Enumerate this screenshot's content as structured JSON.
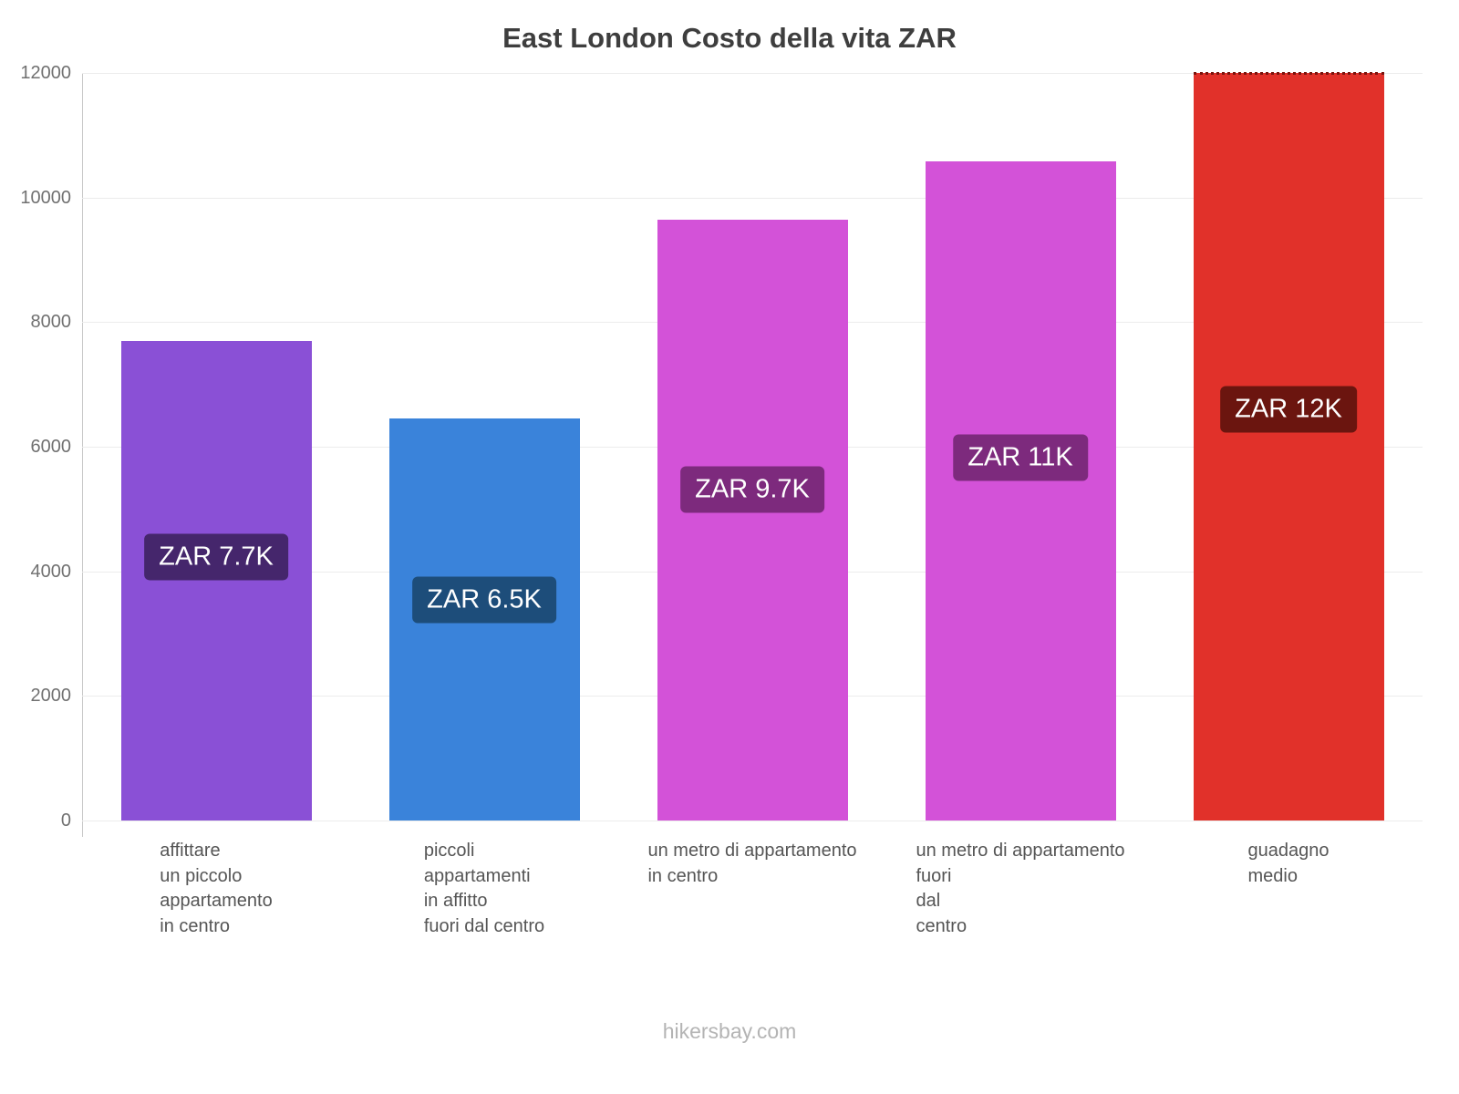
{
  "title": "East London Costo della vita ZAR",
  "footer": "hikersbay.com",
  "chart_data": {
    "type": "bar",
    "title": "East London Costo della vita ZAR",
    "categories": [
      [
        "affittare",
        "un piccolo",
        "appartamento",
        "in centro"
      ],
      [
        "piccoli",
        "appartamenti",
        "in affitto",
        "fuori dal centro"
      ],
      [
        "un metro di appartamento",
        "in centro"
      ],
      [
        "un metro di appartamento",
        "fuori",
        "dal",
        "centro"
      ],
      [
        "guadagno",
        "medio"
      ]
    ],
    "values": [
      7700,
      6450,
      9650,
      10580,
      12000
    ],
    "value_labels": [
      "ZAR 7.7K",
      "ZAR 6.5K",
      "ZAR 9.7K",
      "ZAR 11K",
      "ZAR 12K"
    ],
    "bar_colors": [
      "#8a50d6",
      "#3a83da",
      "#d352d8",
      "#d352d8",
      "#e1312a"
    ],
    "label_bg_colors": [
      "#45266c",
      "#1d4d7a",
      "#7d2a7d",
      "#7d2a7d",
      "#6b150f"
    ],
    "currency": "ZAR",
    "xlabel": "",
    "ylabel": "",
    "ylim": [
      0,
      12000
    ],
    "yticks": [
      0,
      2000,
      4000,
      6000,
      8000,
      10000,
      12000
    ],
    "grid": "horizontal",
    "legend": "none",
    "last_bar_top_dashed": true
  }
}
